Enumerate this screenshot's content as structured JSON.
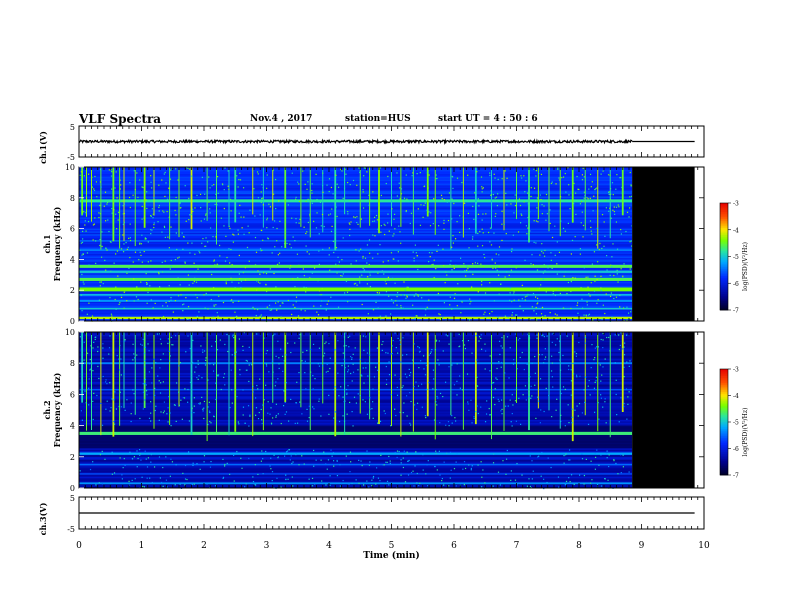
{
  "header": {
    "title": "VLF Spectra",
    "date": "Nov.4 , 2017",
    "station": "station=HUS",
    "start": "start UT = 4 : 50 : 6"
  },
  "chart_data": [
    {
      "type": "line",
      "panel": "ch1-waveform",
      "ylabel": "ch.1(V)",
      "ylim": [
        -5,
        5
      ],
      "yticks": [
        "5",
        "-5"
      ],
      "xlim": [
        0,
        10
      ],
      "data_end_min": 8.85,
      "trace_amplitude_v": 0.4,
      "trace_offset_v": 0
    },
    {
      "type": "heatmap",
      "panel": "ch1-spectrogram",
      "ylabel": "ch.1 Frequency (kHz)",
      "ylim": [
        0,
        10
      ],
      "yticks": [
        "0",
        "2",
        "4",
        "6",
        "8",
        "10"
      ],
      "xlim": [
        0,
        10
      ],
      "data_end_min": 8.85,
      "blank_end_min": 9.85,
      "colorbar": {
        "label": "log(PSD)(V²/Hz)",
        "range": [
          -7,
          -3
        ],
        "ticks": [
          "-3",
          "-4",
          "-5",
          "-6",
          "-7"
        ]
      },
      "bands_khz": [
        {
          "f": 0.2,
          "w": 0.15,
          "level": -4.2
        },
        {
          "f": 0.8,
          "w": 0.1,
          "level": -5.0
        },
        {
          "f": 1.3,
          "w": 0.1,
          "level": -5.2
        },
        {
          "f": 1.7,
          "w": 0.12,
          "level": -5.1
        },
        {
          "f": 2.05,
          "w": 0.25,
          "level": -4.4
        },
        {
          "f": 2.7,
          "w": 0.2,
          "level": -4.6
        },
        {
          "f": 3.2,
          "w": 0.15,
          "level": -5.0
        },
        {
          "f": 3.55,
          "w": 0.2,
          "level": -4.6
        },
        {
          "f": 4.6,
          "w": 0.12,
          "level": -5.4
        },
        {
          "f": 5.2,
          "w": 0.1,
          "level": -5.5
        },
        {
          "f": 7.8,
          "w": 0.2,
          "level": -4.8
        },
        {
          "f": 8.3,
          "w": 0.1,
          "level": -5.6
        }
      ],
      "background_level": -5.8
    },
    {
      "type": "heatmap",
      "panel": "ch2-spectrogram",
      "ylabel": "ch.2 Frequency (kHz)",
      "ylim": [
        0,
        10
      ],
      "yticks": [
        "0",
        "2",
        "4",
        "6",
        "8",
        "10"
      ],
      "xlim": [
        0,
        10
      ],
      "data_end_min": 8.85,
      "blank_end_min": 9.85,
      "colorbar": {
        "label": "log(PSD)(V²/Hz)",
        "range": [
          -7,
          -3
        ],
        "ticks": [
          "-3",
          "-4",
          "-5",
          "-6",
          "-7"
        ]
      },
      "bands_khz": [
        {
          "f": 0.3,
          "w": 0.12,
          "level": -5.3
        },
        {
          "f": 0.9,
          "w": 0.08,
          "level": -5.6
        },
        {
          "f": 1.5,
          "w": 0.1,
          "level": -5.5
        },
        {
          "f": 2.2,
          "w": 0.15,
          "level": -5.2
        },
        {
          "f": 3.5,
          "w": 0.2,
          "level": -4.7
        },
        {
          "f": 6.3,
          "w": 0.1,
          "level": -5.6
        },
        {
          "f": 8.0,
          "w": 0.12,
          "level": -5.4
        }
      ],
      "background_level": -6.3,
      "quiet_band_khz": [
        2.5,
        4.0
      ]
    },
    {
      "type": "line",
      "panel": "ch3-waveform",
      "ylabel": "ch.3(V)",
      "ylim": [
        -5,
        5
      ],
      "yticks": [
        "5",
        "-5"
      ],
      "xlim": [
        0,
        10
      ],
      "xlabel": "Time (min)",
      "xticks": [
        "0",
        "1",
        "2",
        "3",
        "4",
        "5",
        "6",
        "7",
        "8",
        "9",
        "10"
      ],
      "data_end_min": 9.85,
      "trace_amplitude_v": 0,
      "trace_offset_v": 0
    }
  ]
}
